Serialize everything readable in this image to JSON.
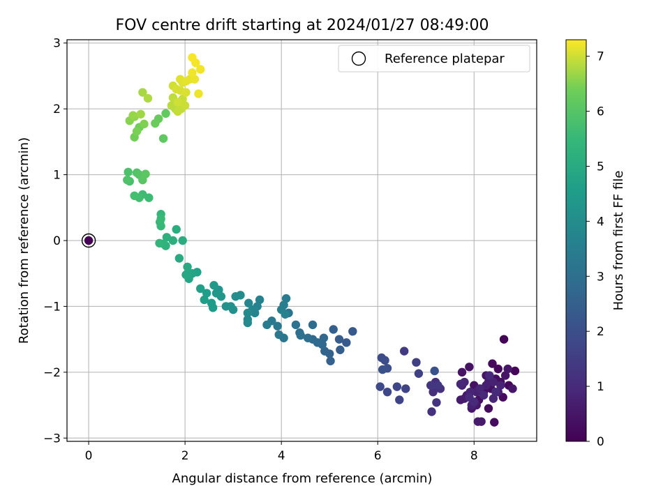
{
  "chart_data": {
    "type": "scatter",
    "title": "FOV centre drift starting at 2024/01/27 08:49:00",
    "xlabel": "Angular distance from reference (arcmin)",
    "ylabel": "Rotation from reference (arcmin)",
    "xlim": [
      -0.45,
      9.3
    ],
    "ylim": [
      -3.05,
      3.05
    ],
    "xticks": [
      0,
      2,
      4,
      6,
      8
    ],
    "yticks": [
      -3,
      -2,
      -1,
      0,
      1,
      2,
      3
    ],
    "grid": true,
    "legend": {
      "position": "top-right",
      "entries": [
        {
          "label": "Reference platepar",
          "marker": "open-circle"
        }
      ]
    },
    "colorbar": {
      "label": "Hours from first FF file",
      "range": [
        0,
        7.3
      ],
      "ticks": [
        0,
        1,
        2,
        3,
        4,
        5,
        6,
        7
      ],
      "colormap": "viridis"
    },
    "reference_point": {
      "x": 0,
      "y": 0
    },
    "series": [
      {
        "points": [
          [
            0.0,
            0.0,
            0.0
          ],
          [
            8.62,
            -1.5,
            0.1
          ],
          [
            8.85,
            -1.98,
            0.12
          ],
          [
            8.72,
            -2.2,
            0.15
          ],
          [
            8.5,
            -1.95,
            0.18
          ],
          [
            8.38,
            -1.87,
            0.2
          ],
          [
            8.6,
            -2.38,
            0.22
          ],
          [
            8.42,
            -2.76,
            0.24
          ],
          [
            8.3,
            -2.55,
            0.26
          ],
          [
            8.2,
            -2.3,
            0.28
          ],
          [
            8.55,
            -2.15,
            0.3
          ],
          [
            8.45,
            -2.1,
            0.32
          ],
          [
            8.35,
            -2.25,
            0.34
          ],
          [
            8.1,
            -2.42,
            0.36
          ],
          [
            8.0,
            -2.2,
            0.38
          ],
          [
            7.9,
            -1.92,
            0.4
          ],
          [
            7.75,
            -2.0,
            0.42
          ],
          [
            8.25,
            -2.05,
            0.44
          ],
          [
            8.65,
            -2.05,
            0.46
          ],
          [
            8.7,
            -1.95,
            0.48
          ],
          [
            8.8,
            -2.25,
            0.5
          ],
          [
            7.95,
            -2.55,
            0.52
          ],
          [
            8.05,
            -2.5,
            0.54
          ],
          [
            8.15,
            -2.75,
            0.56
          ],
          [
            8.08,
            -2.75,
            0.58
          ],
          [
            7.85,
            -2.35,
            0.6
          ],
          [
            7.72,
            -2.42,
            0.62
          ],
          [
            7.8,
            -2.4,
            0.64
          ],
          [
            8.5,
            -2.3,
            0.66
          ],
          [
            8.3,
            -2.15,
            0.68
          ],
          [
            8.25,
            -2.2,
            0.7
          ],
          [
            7.75,
            -2.2,
            0.72
          ],
          [
            8.05,
            -2.3,
            0.74
          ],
          [
            7.95,
            -2.5,
            0.76
          ],
          [
            8.4,
            -2.15,
            0.78
          ],
          [
            8.55,
            -2.2,
            0.8
          ],
          [
            7.92,
            -2.3,
            0.82
          ],
          [
            8.12,
            -2.25,
            0.84
          ],
          [
            7.8,
            -2.15,
            0.86
          ],
          [
            8.4,
            -2.4,
            0.88
          ],
          [
            7.72,
            -2.18,
            0.9
          ],
          [
            8.2,
            -2.35,
            0.92
          ],
          [
            8.32,
            -2.05,
            0.94
          ],
          [
            8.45,
            -2.3,
            0.96
          ],
          [
            7.9,
            -2.38,
            0.98
          ],
          [
            8.0,
            -2.45,
            1.0
          ],
          [
            7.2,
            -2.15,
            1.05
          ],
          [
            7.15,
            -2.3,
            1.1
          ],
          [
            7.3,
            -2.25,
            1.15
          ],
          [
            7.12,
            -2.6,
            1.2
          ],
          [
            7.22,
            -2.46,
            1.25
          ],
          [
            7.1,
            -2.2,
            1.3
          ],
          [
            7.25,
            -2.2,
            1.35
          ],
          [
            6.55,
            -1.68,
            1.45
          ],
          [
            6.8,
            -1.85,
            1.55
          ],
          [
            6.85,
            -2.02,
            1.6
          ],
          [
            6.58,
            -2.25,
            1.65
          ],
          [
            6.45,
            -2.42,
            1.7
          ],
          [
            6.4,
            -2.22,
            1.75
          ],
          [
            6.2,
            -2.3,
            1.8
          ],
          [
            6.05,
            -2.22,
            1.85
          ],
          [
            6.08,
            -1.78,
            1.9
          ],
          [
            6.15,
            -1.82,
            1.95
          ],
          [
            6.2,
            -1.94,
            2.0
          ],
          [
            6.1,
            -1.96,
            2.05
          ],
          [
            7.18,
            -1.98,
            2.1
          ],
          [
            5.48,
            -1.38,
            2.3
          ],
          [
            5.35,
            -1.55,
            2.35
          ],
          [
            5.2,
            -1.5,
            2.4
          ],
          [
            5.22,
            -1.66,
            2.45
          ],
          [
            5.08,
            -1.35,
            2.5
          ],
          [
            5.02,
            -1.83,
            2.55
          ],
          [
            5.0,
            -1.72,
            2.6
          ],
          [
            4.9,
            -1.68,
            2.65
          ],
          [
            4.88,
            -1.48,
            2.7
          ],
          [
            4.85,
            -1.58,
            2.75
          ],
          [
            4.75,
            -1.55,
            2.8
          ],
          [
            4.65,
            -1.5,
            2.85
          ],
          [
            4.65,
            -1.28,
            2.9
          ],
          [
            4.55,
            -1.48,
            2.95
          ],
          [
            4.38,
            -1.4,
            3.0
          ],
          [
            4.4,
            -1.44,
            3.05
          ],
          [
            4.3,
            -1.28,
            3.1
          ],
          [
            4.15,
            -1.1,
            3.15
          ],
          [
            4.05,
            -1.48,
            3.2
          ],
          [
            3.95,
            -1.43,
            3.25
          ],
          [
            3.92,
            -1.3,
            3.3
          ],
          [
            3.8,
            -1.22,
            3.35
          ],
          [
            3.7,
            -1.28,
            3.4
          ],
          [
            4.1,
            -0.88,
            3.45
          ],
          [
            4.05,
            -0.98,
            3.5
          ],
          [
            4.0,
            -1.05,
            3.55
          ],
          [
            4.08,
            -1.12,
            3.6
          ],
          [
            3.55,
            -0.9,
            3.62
          ],
          [
            3.5,
            -1.0,
            3.65
          ],
          [
            3.45,
            -1.1,
            3.7
          ],
          [
            3.4,
            -1.05,
            3.75
          ],
          [
            3.32,
            -0.95,
            3.8
          ],
          [
            3.3,
            -1.2,
            3.85
          ],
          [
            3.3,
            -1.25,
            3.9
          ],
          [
            3.3,
            -1.1,
            3.95
          ],
          [
            3.15,
            -0.83,
            4.0
          ],
          [
            3.05,
            -0.85,
            4.05
          ],
          [
            3.0,
            -1.05,
            4.1
          ],
          [
            2.95,
            -1.0,
            4.15
          ],
          [
            2.85,
            -1.0,
            4.2
          ],
          [
            2.7,
            -0.75,
            4.25
          ],
          [
            2.75,
            -0.85,
            4.3
          ],
          [
            2.65,
            -0.8,
            4.35
          ],
          [
            2.6,
            -0.68,
            4.4
          ],
          [
            2.58,
            -1.02,
            4.45
          ],
          [
            2.55,
            -0.95,
            4.5
          ],
          [
            2.45,
            -0.8,
            4.55
          ],
          [
            2.4,
            -0.9,
            4.6
          ],
          [
            2.32,
            -0.73,
            4.65
          ],
          [
            2.25,
            -0.48,
            4.7
          ],
          [
            2.15,
            -0.5,
            4.75
          ],
          [
            2.08,
            -0.58,
            4.8
          ],
          [
            2.05,
            -0.5,
            4.85
          ],
          [
            2.02,
            -0.52,
            4.9
          ],
          [
            2.05,
            -0.4,
            4.95
          ],
          [
            1.88,
            -0.27,
            5.0
          ],
          [
            1.95,
            0.0,
            5.05
          ],
          [
            1.82,
            0.17,
            5.1
          ],
          [
            1.75,
            0.0,
            5.15
          ],
          [
            1.62,
            0.05,
            5.2
          ],
          [
            1.6,
            -0.08,
            5.25
          ],
          [
            1.55,
            -0.05,
            5.3
          ],
          [
            1.47,
            -0.04,
            5.35
          ],
          [
            1.48,
            0.28,
            5.4
          ],
          [
            1.5,
            0.4,
            5.45
          ],
          [
            1.5,
            0.22,
            5.5
          ],
          [
            1.5,
            0.33,
            5.55
          ],
          [
            1.25,
            0.65,
            5.6
          ],
          [
            1.12,
            0.7,
            5.65
          ],
          [
            1.05,
            0.65,
            5.7
          ],
          [
            0.95,
            0.68,
            5.75
          ],
          [
            0.85,
            0.9,
            5.8
          ],
          [
            0.82,
            1.04,
            5.85
          ],
          [
            0.8,
            0.92,
            5.9
          ],
          [
            1.0,
            1.03,
            5.95
          ],
          [
            1.05,
            1.0,
            6.0
          ],
          [
            1.12,
            0.92,
            6.05
          ],
          [
            1.18,
            1.01,
            6.1
          ],
          [
            1.55,
            1.55,
            6.15
          ],
          [
            1.6,
            1.93,
            6.2
          ],
          [
            1.45,
            1.85,
            6.25
          ],
          [
            1.38,
            1.78,
            6.3
          ],
          [
            1.05,
            1.72,
            6.35
          ],
          [
            0.95,
            1.57,
            6.4
          ],
          [
            1.0,
            1.66,
            6.45
          ],
          [
            1.15,
            1.77,
            6.5
          ],
          [
            0.85,
            1.82,
            6.55
          ],
          [
            0.95,
            1.88,
            6.6
          ],
          [
            0.92,
            1.9,
            6.65
          ],
          [
            1.08,
            1.92,
            6.7
          ],
          [
            1.12,
            2.25,
            6.75
          ],
          [
            1.23,
            2.16,
            6.8
          ],
          [
            1.8,
            2.0,
            6.85
          ],
          [
            1.72,
            2.05,
            6.88
          ],
          [
            1.75,
            2.17,
            6.9
          ],
          [
            1.92,
            2.0,
            6.92
          ],
          [
            1.85,
            1.96,
            6.94
          ],
          [
            1.95,
            2.15,
            6.96
          ],
          [
            2.0,
            2.05,
            6.98
          ],
          [
            1.85,
            2.1,
            7.0
          ],
          [
            1.75,
            2.35,
            7.02
          ],
          [
            1.82,
            2.3,
            7.04
          ],
          [
            1.9,
            2.28,
            7.06
          ],
          [
            2.02,
            2.25,
            7.08
          ],
          [
            1.95,
            2.4,
            7.1
          ],
          [
            1.9,
            2.45,
            7.12
          ],
          [
            2.02,
            2.42,
            7.14
          ],
          [
            2.1,
            2.45,
            7.16
          ],
          [
            2.2,
            2.45,
            7.18
          ],
          [
            2.28,
            2.23,
            7.2
          ],
          [
            2.15,
            2.55,
            7.21
          ],
          [
            2.32,
            2.6,
            7.22
          ],
          [
            2.22,
            2.7,
            7.24
          ],
          [
            2.15,
            2.78,
            7.26
          ]
        ]
      }
    ]
  }
}
